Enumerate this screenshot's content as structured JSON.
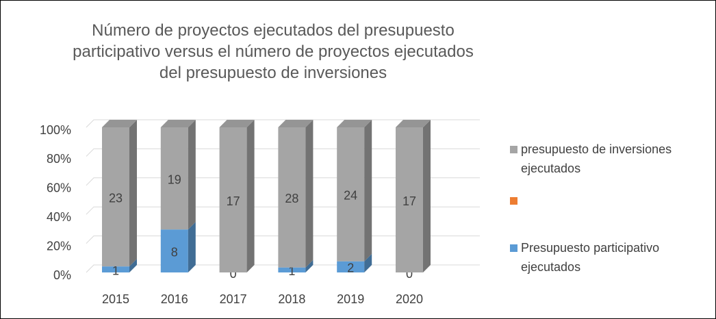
{
  "chart_data": {
    "type": "bar",
    "stacked": "percent",
    "title": "Número de proyectos ejecutados del presupuesto participativo versus el número de proyectos ejecutados del presupuesto de inversiones",
    "categories": [
      "2015",
      "2016",
      "2017",
      "2018",
      "2019",
      "2020"
    ],
    "series": [
      {
        "name": "Presupuesto participativo ejecutados",
        "color": "#5b9bd5",
        "values": [
          1,
          8,
          0,
          1,
          2,
          0
        ]
      },
      {
        "color": "#ed7d31",
        "values": [
          0,
          0,
          0,
          0,
          0,
          0
        ]
      },
      {
        "name": "presupuesto de inversiones ejecutados",
        "color": "#a5a5a5",
        "values": [
          23,
          19,
          17,
          28,
          24,
          17
        ]
      }
    ],
    "ylim": [
      0,
      100
    ],
    "yticks": [
      {
        "value": 0,
        "label": "0%"
      },
      {
        "value": 20,
        "label": "20%"
      },
      {
        "value": 40,
        "label": "40%"
      },
      {
        "value": 60,
        "label": "60%"
      },
      {
        "value": 80,
        "label": "80%"
      },
      {
        "value": 100,
        "label": "100%"
      }
    ],
    "grid": true,
    "legend": "right"
  }
}
